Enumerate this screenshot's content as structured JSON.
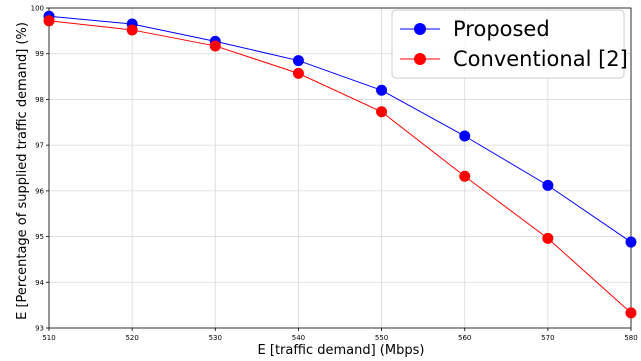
{
  "chart_data": {
    "type": "line",
    "title": "",
    "xlabel": "E [traffic demand] (Mbps)",
    "ylabel": "E [Percentage of supplied traffic demand] (%)",
    "x": [
      510,
      520,
      530,
      540,
      550,
      560,
      570,
      580
    ],
    "xlim": [
      510,
      580
    ],
    "ylim": [
      93,
      100
    ],
    "xticks": [
      "510",
      "520",
      "530",
      "540",
      "550",
      "560",
      "570",
      "580"
    ],
    "yticks": [
      "93",
      "94",
      "95",
      "96",
      "97",
      "98",
      "99",
      "100"
    ],
    "grid": true,
    "legend_position": "top-right",
    "series": [
      {
        "name": "Proposed",
        "color": "#0000ff",
        "values": [
          99.82,
          99.65,
          99.27,
          98.85,
          98.2,
          97.2,
          96.12,
          94.88
        ]
      },
      {
        "name": "Conventional [2]",
        "color": "#ff0000",
        "values": [
          99.72,
          99.52,
          99.17,
          98.57,
          97.73,
          96.32,
          94.96,
          93.33
        ]
      }
    ]
  }
}
